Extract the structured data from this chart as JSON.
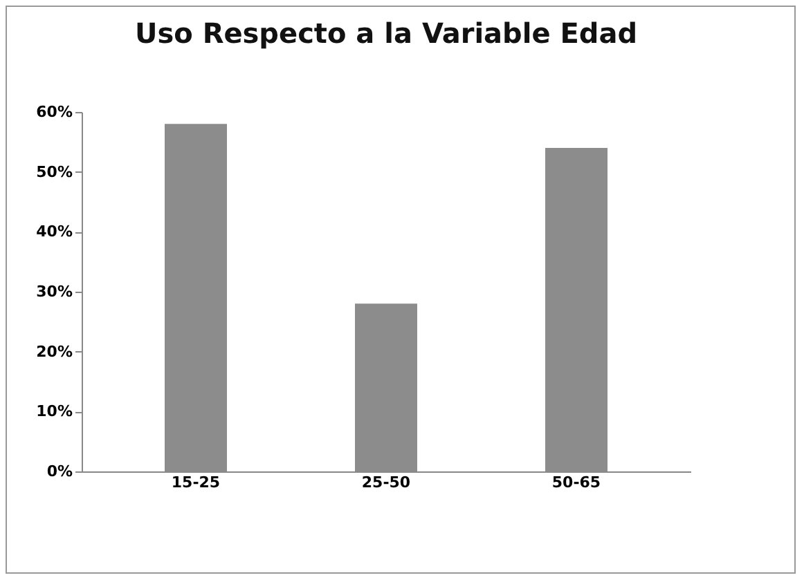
{
  "chart_data": {
    "type": "bar",
    "title": "Uso Respecto a la Variable Edad",
    "categories": [
      "15-25",
      "25-50",
      "50-65"
    ],
    "values": [
      58,
      28,
      54
    ],
    "color": "#8c8c8c",
    "ylim": [
      0,
      60
    ],
    "yticks": [
      {
        "value": 0,
        "label": "0%"
      },
      {
        "value": 10,
        "label": "10%"
      },
      {
        "value": 20,
        "label": "20%"
      },
      {
        "value": 30,
        "label": "30%"
      },
      {
        "value": 40,
        "label": "40%"
      },
      {
        "value": 50,
        "label": "50%"
      },
      {
        "value": 60,
        "label": "60%"
      }
    ],
    "grid": false
  }
}
